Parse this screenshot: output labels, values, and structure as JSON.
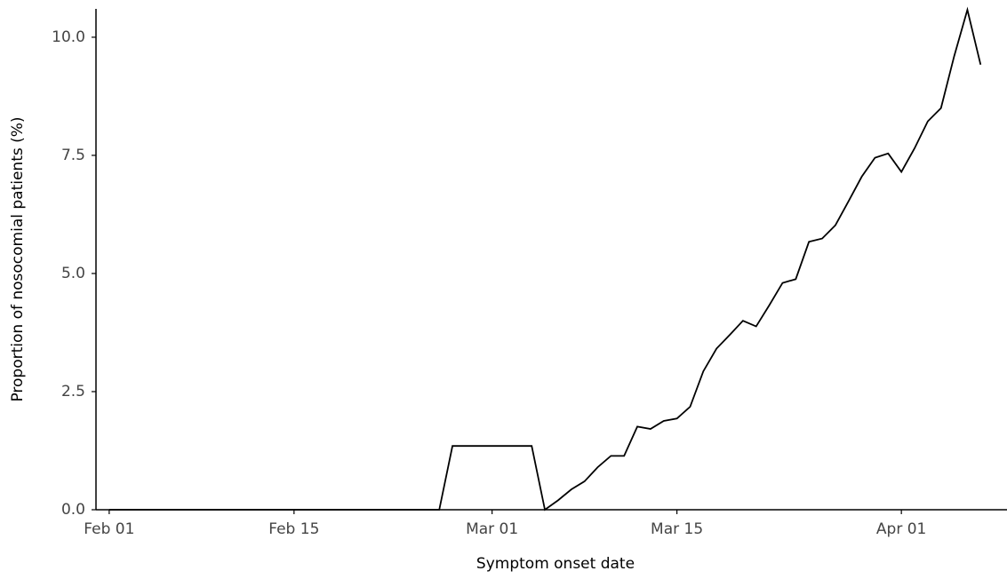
{
  "chart_data": {
    "type": "line",
    "xlabel": "Symptom onset date",
    "ylabel": "Proportion of nosocomial patients (%)",
    "x": [
      "Feb 01",
      "Feb 02",
      "Feb 03",
      "Feb 04",
      "Feb 05",
      "Feb 06",
      "Feb 07",
      "Feb 08",
      "Feb 09",
      "Feb 10",
      "Feb 11",
      "Feb 12",
      "Feb 13",
      "Feb 14",
      "Feb 15",
      "Feb 16",
      "Feb 17",
      "Feb 18",
      "Feb 19",
      "Feb 20",
      "Feb 21",
      "Feb 22",
      "Feb 23",
      "Feb 24",
      "Feb 25",
      "Feb 26",
      "Feb 27",
      "Feb 28",
      "Feb 29",
      "Mar 01",
      "Mar 02",
      "Mar 03",
      "Mar 04",
      "Mar 05",
      "Mar 06",
      "Mar 07",
      "Mar 08",
      "Mar 09",
      "Mar 10",
      "Mar 11",
      "Mar 12",
      "Mar 13",
      "Mar 14",
      "Mar 15",
      "Mar 16",
      "Mar 17",
      "Mar 18",
      "Mar 19",
      "Mar 20",
      "Mar 21",
      "Mar 22",
      "Mar 23",
      "Mar 24",
      "Mar 25",
      "Mar 26",
      "Mar 27",
      "Mar 28",
      "Mar 29",
      "Mar 30",
      "Mar 31",
      "Apr 01",
      "Apr 02",
      "Apr 03",
      "Apr 04",
      "Apr 05",
      "Apr 06",
      "Apr 07"
    ],
    "series": [
      {
        "color": "#000000",
        "values": [
          0,
          0,
          0,
          0,
          0,
          0,
          0,
          0,
          0,
          0,
          0,
          0,
          0,
          0,
          0,
          0,
          0,
          0,
          0,
          0,
          0,
          0,
          0,
          0,
          0,
          0,
          1.35,
          1.35,
          1.35,
          1.35,
          1.35,
          1.35,
          1.35,
          0,
          0.2,
          0.43,
          0.6,
          0.9,
          1.14,
          1.14,
          1.76,
          1.71,
          1.88,
          1.93,
          2.18,
          2.93,
          3.41,
          3.7,
          4.0,
          3.88,
          4.33,
          4.8,
          4.88,
          5.67,
          5.74,
          6.02,
          6.53,
          7.05,
          7.45,
          7.54,
          7.15,
          7.65,
          8.22,
          8.5,
          9.6,
          10.58,
          9.42
        ]
      }
    ],
    "xlim": [
      "Jan 31",
      "Apr 09"
    ],
    "xticks": [
      "Feb 01",
      "Feb 15",
      "Mar 01",
      "Mar 15",
      "Apr 01"
    ],
    "ylim": [
      0,
      10.6
    ],
    "yticks": [
      {
        "value": 0,
        "label": "0.0"
      },
      2.5,
      {
        "value": 5,
        "label": "5.0"
      },
      7.5,
      {
        "value": 10,
        "label": "10.0"
      }
    ]
  }
}
